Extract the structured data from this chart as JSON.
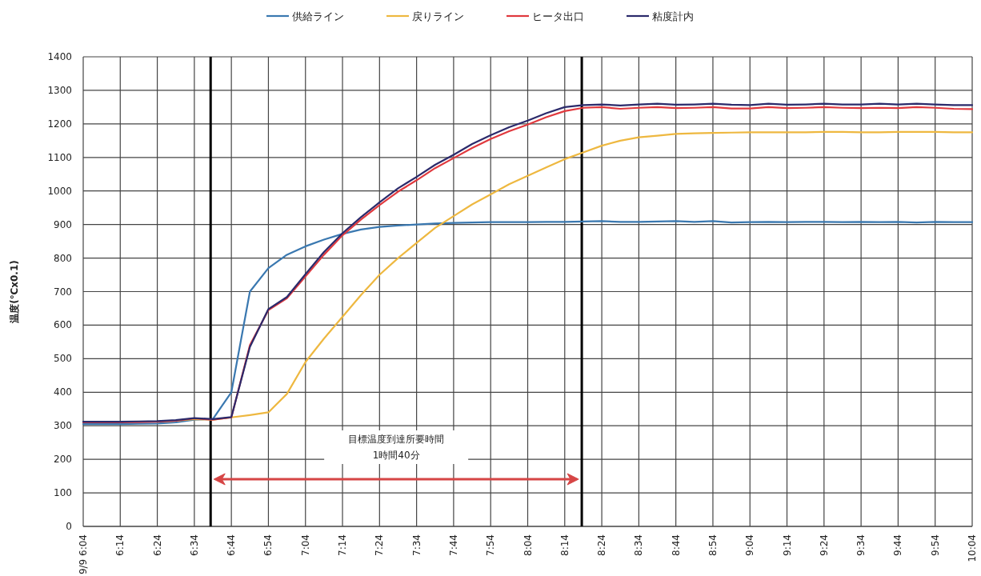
{
  "chart_data": {
    "type": "line",
    "ylabel": "温度(℃x0.1)",
    "x": [
      6.0667,
      6.15,
      6.2333,
      6.3167,
      6.4,
      6.4833,
      6.5667,
      6.65,
      6.7333,
      6.8167,
      6.9,
      6.9833,
      7.0667,
      7.15,
      7.2333,
      7.3167,
      7.4,
      7.4833,
      7.5667,
      7.65,
      7.7333,
      7.8167,
      7.9,
      7.9833,
      8.0667,
      8.15,
      8.2333,
      8.3167,
      8.4,
      8.4833,
      8.5667,
      8.65,
      8.7333,
      8.8167,
      8.9,
      8.9833,
      9.0667,
      9.15,
      9.2333,
      9.3167,
      9.4,
      9.4833,
      9.5667,
      9.65,
      9.7333,
      9.8167,
      9.9,
      9.9833,
      10.0667
    ],
    "series": [
      {
        "name": "供給ライン",
        "color": "#3a78b0",
        "values": [
          305,
          305,
          305,
          306,
          307,
          310,
          318,
          320,
          400,
          700,
          770,
          810,
          835,
          855,
          872,
          885,
          893,
          897,
          900,
          903,
          905,
          906,
          907,
          907,
          907,
          908,
          908,
          909,
          910,
          908,
          908,
          909,
          910,
          908,
          910,
          906,
          907,
          908,
          907,
          908,
          908,
          907,
          908,
          907,
          908,
          906,
          908,
          907,
          907
        ]
      },
      {
        "name": "戻りライン",
        "color": "#eeb840",
        "values": [
          null,
          null,
          null,
          null,
          312,
          315,
          320,
          318,
          325,
          332,
          340,
          395,
          490,
          560,
          625,
          690,
          750,
          800,
          845,
          890,
          925,
          960,
          990,
          1020,
          1045,
          1070,
          1095,
          1115,
          1135,
          1150,
          1160,
          1165,
          1170,
          1172,
          1173,
          1174,
          1175,
          1175,
          1175,
          1175,
          1176,
          1176,
          1175,
          1175,
          1176,
          1176,
          1176,
          1175,
          1175
        ]
      },
      {
        "name": "ヒータ出口",
        "color": "#e0393e",
        "values": [
          310,
          310,
          310,
          311,
          312,
          315,
          322,
          318,
          325,
          540,
          645,
          680,
          745,
          810,
          868,
          915,
          958,
          998,
          1032,
          1068,
          1098,
          1128,
          1155,
          1178,
          1198,
          1220,
          1238,
          1248,
          1250,
          1245,
          1248,
          1250,
          1247,
          1248,
          1250,
          1246,
          1246,
          1250,
          1247,
          1248,
          1250,
          1248,
          1247,
          1248,
          1247,
          1250,
          1248,
          1245,
          1244
        ]
      },
      {
        "name": "粘度計内",
        "color": "#2b2a6b",
        "values": [
          312,
          312,
          312,
          313,
          314,
          317,
          323,
          320,
          326,
          535,
          648,
          684,
          752,
          818,
          874,
          922,
          966,
          1008,
          1042,
          1078,
          1108,
          1140,
          1166,
          1190,
          1210,
          1232,
          1250,
          1256,
          1258,
          1255,
          1258,
          1260,
          1257,
          1258,
          1260,
          1257,
          1256,
          1260,
          1257,
          1258,
          1260,
          1258,
          1258,
          1260,
          1258,
          1260,
          1258,
          1256,
          1256
        ]
      }
    ],
    "xlim": [
      6.0667,
      10.0667
    ],
    "xticks": [
      {
        "value": 6.0667,
        "label": "9/9 6:04"
      },
      {
        "value": 6.2333,
        "label": "6:14"
      },
      {
        "value": 6.4,
        "label": "6:24"
      },
      {
        "value": 6.5667,
        "label": "6:34"
      },
      {
        "value": 6.7333,
        "label": "6:44"
      },
      {
        "value": 6.9,
        "label": "6:54"
      },
      {
        "value": 7.0667,
        "label": "7:04"
      },
      {
        "value": 7.2333,
        "label": "7:14"
      },
      {
        "value": 7.4,
        "label": "7:24"
      },
      {
        "value": 7.5667,
        "label": "7:34"
      },
      {
        "value": 7.7333,
        "label": "7:44"
      },
      {
        "value": 7.9,
        "label": "7:54"
      },
      {
        "value": 8.0667,
        "label": "8:04"
      },
      {
        "value": 8.2333,
        "label": "8:14"
      },
      {
        "value": 8.4,
        "label": "8:24"
      },
      {
        "value": 8.5667,
        "label": "8:34"
      },
      {
        "value": 8.7333,
        "label": "8:44"
      },
      {
        "value": 8.9,
        "label": "8:54"
      },
      {
        "value": 9.0667,
        "label": "9:04"
      },
      {
        "value": 9.2333,
        "label": "9:14"
      },
      {
        "value": 9.4,
        "label": "9:24"
      },
      {
        "value": 9.5667,
        "label": "9:34"
      },
      {
        "value": 9.7333,
        "label": "9:44"
      },
      {
        "value": 9.9,
        "label": "9:54"
      },
      {
        "value": 10.0667,
        "label": "10:04"
      }
    ],
    "ylim": [
      0,
      1400
    ],
    "yticks": [
      0,
      100,
      200,
      300,
      400,
      500,
      600,
      700,
      800,
      900,
      1000,
      1100,
      1200,
      1300,
      1400
    ],
    "grid": true,
    "legend": "top",
    "line_style": "solid",
    "marker": "none",
    "ref_lines": [
      {
        "axis": "x",
        "value": 6.64,
        "color": "#000000"
      },
      {
        "axis": "x",
        "value": 8.31,
        "color": "#000000"
      }
    ],
    "annotations": [
      "目標温度到達所要時間",
      "1時間40分"
    ]
  }
}
